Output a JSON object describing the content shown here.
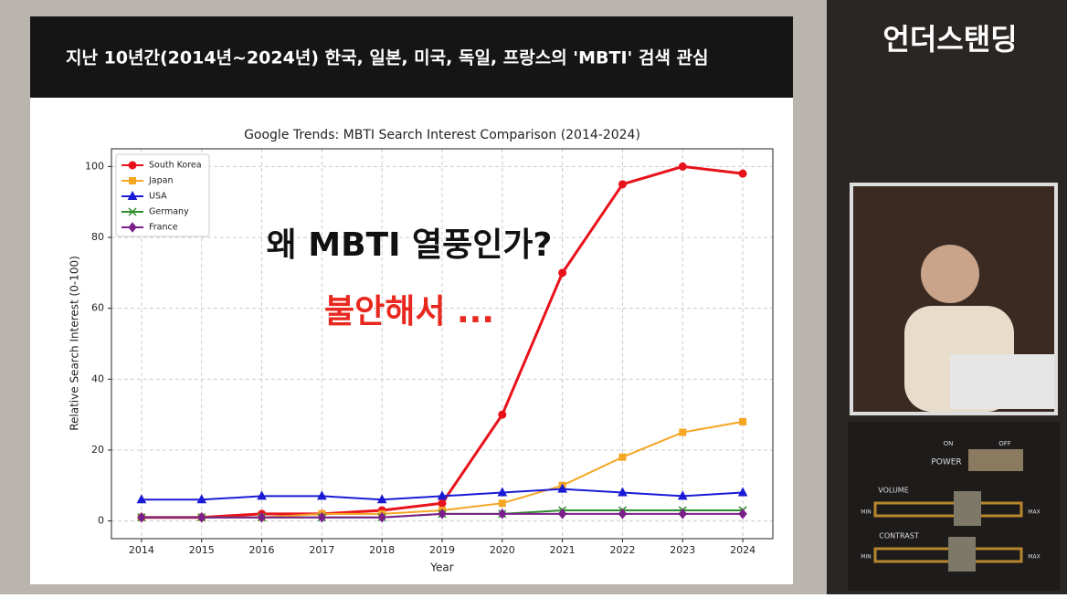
{
  "banner": "지난 10년간(2014년~2024년) 한국, 일본, 미국, 독일, 프랑스의 'MBTI' 검색 관심",
  "overlay": {
    "question": "왜 MBTI 열풍인가?",
    "answer": "불안해서 ..."
  },
  "channel": "언더스탠딩",
  "controls": {
    "power": "POWER",
    "on": "ON",
    "off": "OFF",
    "volume": "VOLUME",
    "contrast": "CONTRAST",
    "min": "MIN",
    "max": "MAX"
  },
  "chart_data": {
    "type": "line",
    "title": "Google Trends: MBTI Search Interest Comparison (2014-2024)",
    "x_label": "Year",
    "y_label": "Relative Search Interest (0-100)",
    "x": [
      2014,
      2015,
      2016,
      2017,
      2018,
      2019,
      2020,
      2021,
      2022,
      2023,
      2024
    ],
    "series": [
      {
        "name": "South Korea",
        "color": "#e8121b",
        "marker": "circle",
        "values": [
          1,
          1,
          2,
          2,
          3,
          5,
          30,
          70,
          95,
          100,
          98
        ]
      },
      {
        "name": "Japan",
        "color": "#f5a623",
        "marker": "square",
        "values": [
          1,
          1,
          1,
          2,
          2,
          3,
          5,
          10,
          18,
          25,
          28
        ]
      },
      {
        "name": "USA",
        "color": "#1a1ad6",
        "marker": "triangle",
        "values": [
          6,
          6,
          7,
          7,
          6,
          7,
          8,
          9,
          8,
          7,
          8
        ]
      },
      {
        "name": "Germany",
        "color": "#2e8b2e",
        "marker": "x",
        "values": [
          1,
          1,
          1,
          1,
          1,
          2,
          2,
          3,
          3,
          3,
          3
        ]
      },
      {
        "name": "France",
        "color": "#7b1f8a",
        "marker": "diamond",
        "values": [
          1,
          1,
          1,
          1,
          1,
          2,
          2,
          2,
          2,
          2,
          2
        ]
      }
    ],
    "xlim": [
      2013.5,
      2024.5
    ],
    "xticks": [
      2014,
      2015,
      2016,
      2017,
      2018,
      2019,
      2020,
      2021,
      2022,
      2023,
      2024
    ],
    "ylim": [
      -5,
      105
    ],
    "yticks": [
      0,
      20,
      40,
      60,
      80,
      100
    ],
    "grid": true,
    "legend": "upper left"
  }
}
